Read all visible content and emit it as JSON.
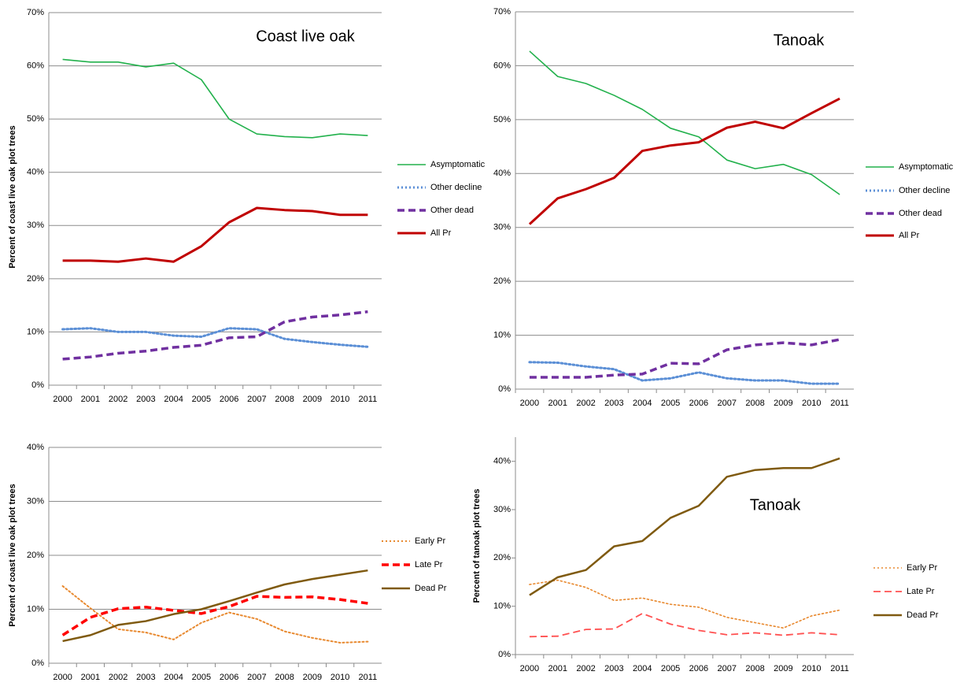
{
  "chart_data": [
    {
      "type": "line",
      "title": "Coast live oak",
      "y_label": "Percent of coast live oak plot trees",
      "categories": [
        "2000",
        "2001",
        "2002",
        "2003",
        "2004",
        "2005",
        "2006",
        "2007",
        "2008",
        "2009",
        "2010",
        "2011"
      ],
      "ylim": [
        0,
        70
      ],
      "yticks": [
        {
          "value": 0,
          "label": "0%"
        },
        {
          "value": 10,
          "label": "10%"
        },
        {
          "value": 20,
          "label": "20%"
        },
        {
          "value": 30,
          "label": "30%"
        },
        {
          "value": 40,
          "label": "40%"
        },
        {
          "value": 50,
          "label": "50%"
        },
        {
          "value": 60,
          "label": "60%"
        },
        {
          "value": 70,
          "label": "70%"
        }
      ],
      "grid": true,
      "series": [
        {
          "name": "Asymptomatic",
          "color": "#22b14c",
          "style": "solid",
          "values": [
            61.2,
            60.7,
            60.7,
            59.8,
            60.5,
            57.4,
            50.0,
            47.2,
            46.7,
            46.5,
            47.2,
            46.9
          ]
        },
        {
          "name": "Other decline",
          "color": "#5b8fd6",
          "style": "dotted",
          "values": [
            10.5,
            10.7,
            10.0,
            10.0,
            9.3,
            9.1,
            10.7,
            10.5,
            8.7,
            8.1,
            7.6,
            7.2
          ]
        },
        {
          "name": "Other dead",
          "color": "#7030a0",
          "style": "dashed",
          "values": [
            4.9,
            5.3,
            6.0,
            6.4,
            7.1,
            7.5,
            8.9,
            9.1,
            11.9,
            12.8,
            13.2,
            13.8
          ]
        },
        {
          "name": "All Pr",
          "color": "#c00000",
          "style": "solid",
          "values": [
            23.4,
            23.4,
            23.2,
            23.8,
            23.2,
            26.1,
            30.6,
            33.3,
            32.9,
            32.7,
            32.0,
            32.0
          ]
        }
      ]
    },
    {
      "type": "line",
      "title": "Tanoak",
      "categories": [
        "2000",
        "2001",
        "2002",
        "2003",
        "2004",
        "2005",
        "2006",
        "2007",
        "2008",
        "2009",
        "2010",
        "2011"
      ],
      "ylim": [
        0,
        70
      ],
      "yticks": [
        {
          "value": 0,
          "label": "0%"
        },
        {
          "value": 10,
          "label": "10%"
        },
        {
          "value": 20,
          "label": "20%"
        },
        {
          "value": 30,
          "label": "30%"
        },
        {
          "value": 40,
          "label": "40%"
        },
        {
          "value": 50,
          "label": "50%"
        },
        {
          "value": 60,
          "label": "60%"
        },
        {
          "value": 70,
          "label": "70%"
        }
      ],
      "grid": true,
      "series": [
        {
          "name": "Asymptomatic",
          "color": "#22b14c",
          "style": "solid",
          "values": [
            62.7,
            58.0,
            56.7,
            54.5,
            51.9,
            48.4,
            46.8,
            42.5,
            40.9,
            41.7,
            39.8,
            36.1
          ]
        },
        {
          "name": "Other decline",
          "color": "#5b8fd6",
          "style": "dotted",
          "values": [
            5.0,
            4.9,
            4.2,
            3.7,
            1.6,
            2.0,
            3.1,
            2.0,
            1.6,
            1.6,
            1.0,
            1.0
          ]
        },
        {
          "name": "Other dead",
          "color": "#7030a0",
          "style": "dashed",
          "values": [
            2.2,
            2.2,
            2.2,
            2.6,
            2.8,
            4.8,
            4.7,
            7.3,
            8.2,
            8.6,
            8.2,
            9.2
          ]
        },
        {
          "name": "All Pr",
          "color": "#c00000",
          "style": "solid",
          "values": [
            30.6,
            35.4,
            37.1,
            39.2,
            44.2,
            45.2,
            45.8,
            48.5,
            49.6,
            48.4,
            51.2,
            53.9
          ]
        }
      ]
    },
    {
      "type": "line",
      "y_label": "Percent of coast live oak plot trees",
      "categories": [
        "2000",
        "2001",
        "2002",
        "2003",
        "2004",
        "2005",
        "2006",
        "2007",
        "2008",
        "2009",
        "2010",
        "2011"
      ],
      "ylim": [
        0,
        40
      ],
      "yticks": [
        {
          "value": 0,
          "label": "0%"
        },
        {
          "value": 10,
          "label": "10%"
        },
        {
          "value": 20,
          "label": "20%"
        },
        {
          "value": 30,
          "label": "30%"
        },
        {
          "value": 40,
          "label": "40%"
        }
      ],
      "grid": true,
      "series": [
        {
          "name": "Early Pr",
          "color": "#e8892f",
          "style": "dotted",
          "values": [
            14.3,
            10.2,
            6.3,
            5.7,
            4.4,
            7.5,
            9.4,
            8.2,
            5.9,
            4.7,
            3.8,
            4.0
          ]
        },
        {
          "name": "Late Pr",
          "color": "#ff0000",
          "style": "dashed",
          "values": [
            5.2,
            8.5,
            10.1,
            10.4,
            9.8,
            9.2,
            10.5,
            12.4,
            12.2,
            12.3,
            11.8,
            11.1
          ]
        },
        {
          "name": "Dead Pr",
          "color": "#7f5a10",
          "style": "solid",
          "values": [
            4.1,
            5.2,
            7.1,
            7.8,
            9.1,
            10.0,
            11.5,
            13.1,
            14.6,
            15.6,
            16.4,
            17.2
          ]
        }
      ]
    },
    {
      "type": "line",
      "title": "Tanoak",
      "y_label": "Percent of tanoak plot trees",
      "categories": [
        "2000",
        "2001",
        "2002",
        "2003",
        "2004",
        "2005",
        "2006",
        "2007",
        "2008",
        "2009",
        "2010",
        "2011"
      ],
      "ylim": [
        0,
        45
      ],
      "yticks": [
        {
          "value": 0,
          "label": "0%"
        },
        {
          "value": 10,
          "label": "10%"
        },
        {
          "value": 20,
          "label": "20%"
        },
        {
          "value": 30,
          "label": "30%"
        },
        {
          "value": 40,
          "label": "40%"
        }
      ],
      "grid": false,
      "series": [
        {
          "name": "Early Pr",
          "color": "#e8892f",
          "style": "dotted",
          "values": [
            14.5,
            15.4,
            13.9,
            11.2,
            11.7,
            10.4,
            9.8,
            7.7,
            6.6,
            5.5,
            8.0,
            9.2
          ]
        },
        {
          "name": "Late Pr",
          "color": "#ff5050",
          "style": "dashed",
          "values": [
            3.7,
            3.8,
            5.2,
            5.3,
            8.5,
            6.3,
            5.0,
            4.1,
            4.5,
            4.0,
            4.5,
            4.1
          ]
        },
        {
          "name": "Dead Pr",
          "color": "#7f5a10",
          "style": "solid",
          "values": [
            12.3,
            16.0,
            17.5,
            22.4,
            23.5,
            28.3,
            30.8,
            36.8,
            38.2,
            38.6,
            38.6,
            40.6
          ]
        }
      ]
    }
  ]
}
